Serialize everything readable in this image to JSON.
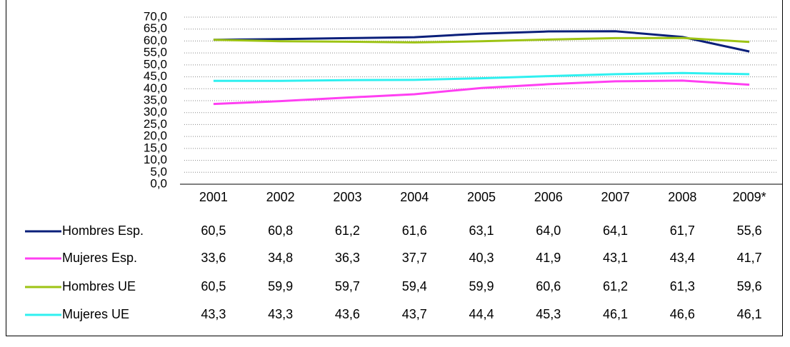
{
  "chart_data": {
    "type": "line",
    "categories": [
      "2001",
      "2002",
      "2003",
      "2004",
      "2005",
      "2006",
      "2007",
      "2008",
      "2009*"
    ],
    "series": [
      {
        "name": "Hombres Esp.",
        "color": "#0a1f7a",
        "values": [
          60.5,
          60.8,
          61.2,
          61.6,
          63.1,
          64.0,
          64.1,
          61.7,
          55.6
        ],
        "value_labels": [
          "60,5",
          "60,8",
          "61,2",
          "61,6",
          "63,1",
          "64,0",
          "64,1",
          "61,7",
          "55,6"
        ]
      },
      {
        "name": "Mujeres Esp.",
        "color": "#ff3ff2",
        "values": [
          33.6,
          34.8,
          36.3,
          37.7,
          40.3,
          41.9,
          43.1,
          43.4,
          41.7
        ],
        "value_labels": [
          "33,6",
          "34,8",
          "36,3",
          "37,7",
          "40,3",
          "41,9",
          "43,1",
          "43,4",
          "41,7"
        ]
      },
      {
        "name": "Hombres UE",
        "color": "#9dc314",
        "values": [
          60.5,
          59.9,
          59.7,
          59.4,
          59.9,
          60.6,
          61.2,
          61.3,
          59.6
        ],
        "value_labels": [
          "60,5",
          "59,9",
          "59,7",
          "59,4",
          "59,9",
          "60,6",
          "61,2",
          "61,3",
          "59,6"
        ]
      },
      {
        "name": "Mujeres UE",
        "color": "#2ff0f0",
        "values": [
          43.3,
          43.3,
          43.6,
          43.7,
          44.4,
          45.3,
          46.1,
          46.6,
          46.1
        ],
        "value_labels": [
          "43,3",
          "43,3",
          "43,6",
          "43,7",
          "44,4",
          "45,3",
          "46,1",
          "46,6",
          "46,1"
        ]
      }
    ],
    "ylim": [
      0,
      70
    ],
    "yticks": [
      {
        "value": 0,
        "label": "0,0"
      },
      {
        "value": 5,
        "label": "5,0"
      },
      {
        "value": 10,
        "label": "10,0"
      },
      {
        "value": 15,
        "label": "15,0"
      },
      {
        "value": 20,
        "label": "20,0"
      },
      {
        "value": 25,
        "label": "25,0"
      },
      {
        "value": 30,
        "label": "30,0"
      },
      {
        "value": 35,
        "label": "35,0"
      },
      {
        "value": 40,
        "label": "40,0"
      },
      {
        "value": 45,
        "label": "45,0"
      },
      {
        "value": 50,
        "label": "50,0"
      },
      {
        "value": 55,
        "label": "55,0"
      },
      {
        "value": 60,
        "label": "60,0"
      },
      {
        "value": 65,
        "label": "65,0"
      },
      {
        "value": 70,
        "label": "70,0"
      }
    ],
    "grid": true
  }
}
